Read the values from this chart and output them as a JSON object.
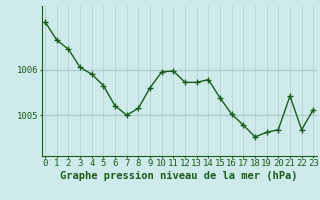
{
  "x": [
    0,
    1,
    2,
    3,
    4,
    5,
    6,
    7,
    8,
    9,
    10,
    11,
    12,
    13,
    14,
    15,
    16,
    17,
    18,
    19,
    20,
    21,
    22,
    23
  ],
  "y": [
    1007.05,
    1006.65,
    1006.45,
    1006.05,
    1005.9,
    1005.65,
    1005.2,
    1005.0,
    1005.15,
    1005.6,
    1005.95,
    1005.97,
    1005.72,
    1005.72,
    1005.78,
    1005.38,
    1005.02,
    1004.78,
    1004.52,
    1004.62,
    1004.68,
    1005.42,
    1004.68,
    1005.12
  ],
  "line_color": "#1a5c1a",
  "marker_color": "#1a5c1a",
  "bg_color": "#ceeaea",
  "grid_color_v": "#b8d8d8",
  "grid_color_h": "#aacccc",
  "axis_color": "#1a5c1a",
  "xlabel": "Graphe pression niveau de la mer (hPa)",
  "yticks": [
    1005,
    1006
  ],
  "ylim": [
    1004.1,
    1007.4
  ],
  "xlim": [
    -0.3,
    23.3
  ],
  "label_fontsize": 7.5,
  "tick_fontsize": 6.5
}
